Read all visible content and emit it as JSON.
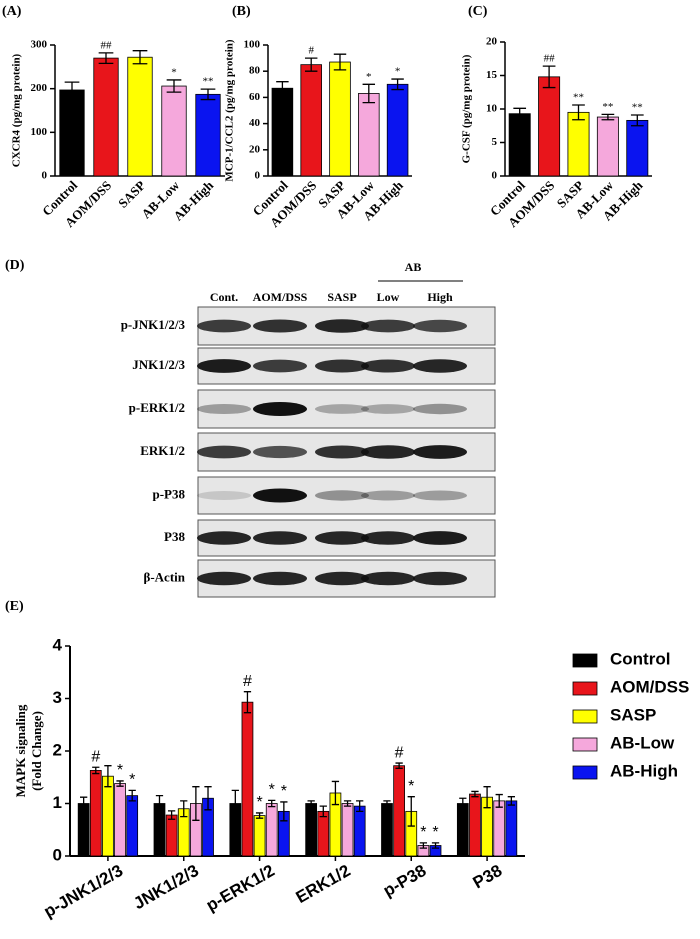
{
  "chart_data": [
    {
      "type": "bar",
      "panel": "(A)",
      "ylabel": "CXCR4 (pg/mg protein)",
      "categories": [
        "Control",
        "AOM/DSS",
        "SASP",
        "AB-Low",
        "AB-High"
      ],
      "values": [
        197,
        270,
        272,
        206,
        187
      ],
      "errors": [
        18,
        12,
        15,
        14,
        12
      ],
      "colors": [
        "#000000",
        "#e8151b",
        "#ffff00",
        "#f5a8dc",
        "#0a14f0"
      ],
      "annotations": [
        null,
        "##",
        null,
        "*",
        "**"
      ],
      "ylim": [
        0,
        300
      ],
      "yticks": [
        0,
        100,
        200,
        300
      ]
    },
    {
      "type": "bar",
      "panel": "(B)",
      "ylabel": "MCP-1/CCL2 (pg/mg protein)",
      "categories": [
        "Control",
        "AOM/DSS",
        "SASP",
        "AB-Low",
        "AB-High"
      ],
      "values": [
        67,
        85,
        87,
        63,
        70
      ],
      "errors": [
        5,
        5,
        6,
        7,
        4
      ],
      "colors": [
        "#000000",
        "#e8151b",
        "#ffff00",
        "#f5a8dc",
        "#0a14f0"
      ],
      "annotations": [
        null,
        "#",
        null,
        "*",
        "*"
      ],
      "ylim": [
        0,
        100
      ],
      "yticks": [
        0,
        20,
        40,
        60,
        80,
        100
      ]
    },
    {
      "type": "bar",
      "panel": "(C)",
      "ylabel": "G-CSF (pg/mg protein)",
      "categories": [
        "Control",
        "AOM/DSS",
        "SASP",
        "AB-Low",
        "AB-High"
      ],
      "values": [
        9.3,
        14.8,
        9.5,
        8.8,
        8.3
      ],
      "errors": [
        0.8,
        1.6,
        1.1,
        0.4,
        0.8
      ],
      "colors": [
        "#000000",
        "#e8151b",
        "#ffff00",
        "#f5a8dc",
        "#0a14f0"
      ],
      "annotations": [
        null,
        "##",
        "**",
        "**",
        "**"
      ],
      "ylim": [
        0,
        20
      ],
      "yticks": [
        0,
        5,
        10,
        15,
        20
      ]
    },
    {
      "type": "grouped-bar",
      "panel": "(E)",
      "ylabel": [
        "MAPK signaling",
        "(Fold Change)"
      ],
      "categories": [
        "p-JNK1/2/3",
        "JNK1/2/3",
        "p-ERK1/2",
        "ERK1/2",
        "p-P38",
        "P38"
      ],
      "series": [
        {
          "name": "Control",
          "color": "#000000",
          "values": [
            1.0,
            1.0,
            1.0,
            1.0,
            1.0,
            1.0
          ],
          "errors": [
            0.12,
            0.15,
            0.25,
            0.05,
            0.05,
            0.1
          ],
          "annotations": [
            null,
            null,
            null,
            null,
            null,
            null
          ]
        },
        {
          "name": "AOM/DSS",
          "color": "#e8151b",
          "values": [
            1.63,
            0.78,
            2.93,
            0.85,
            1.72,
            1.18
          ],
          "errors": [
            0.06,
            0.08,
            0.2,
            0.1,
            0.05,
            0.05
          ],
          "annotations": [
            "#",
            null,
            "#",
            null,
            "#",
            null
          ]
        },
        {
          "name": "SASP",
          "color": "#ffff00",
          "values": [
            1.52,
            0.9,
            0.77,
            1.2,
            0.85,
            1.12
          ],
          "errors": [
            0.2,
            0.15,
            0.05,
            0.22,
            0.28,
            0.2
          ],
          "annotations": [
            null,
            null,
            "*",
            null,
            "*",
            null
          ]
        },
        {
          "name": "AB-Low",
          "color": "#f5a8dc",
          "values": [
            1.38,
            1.0,
            1.0,
            1.0,
            0.2,
            1.05
          ],
          "errors": [
            0.05,
            0.32,
            0.06,
            0.05,
            0.05,
            0.12
          ],
          "annotations": [
            "*",
            null,
            "*",
            null,
            "*",
            null
          ]
        },
        {
          "name": "AB-High",
          "color": "#0a14f0",
          "values": [
            1.15,
            1.1,
            0.85,
            0.95,
            0.2,
            1.05
          ],
          "errors": [
            0.1,
            0.22,
            0.18,
            0.1,
            0.05,
            0.08
          ],
          "annotations": [
            "*",
            null,
            "*",
            null,
            "*",
            null
          ]
        }
      ],
      "ylim": [
        0,
        4
      ],
      "yticks": [
        0,
        1,
        2,
        3,
        4
      ],
      "legend": "right"
    }
  ],
  "blot": {
    "panel": "(D)",
    "group": "AB",
    "lanes": [
      "Cont.",
      "AOM/DSS",
      "SASP",
      "Low",
      "High"
    ],
    "rows": [
      "p-JNK1/2/3",
      "JNK1/2/3",
      "p-ERK1/2",
      "ERK1/2",
      "p-P38",
      "P38",
      "β-Actin"
    ]
  }
}
